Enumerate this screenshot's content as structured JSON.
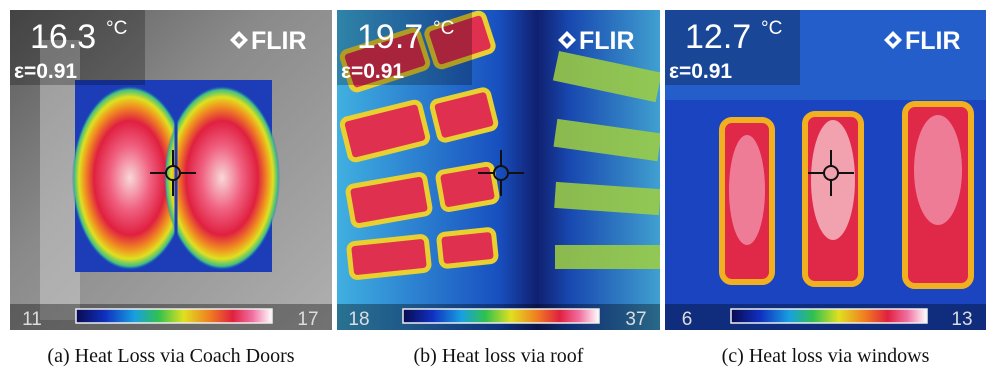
{
  "panels": [
    {
      "temperature": "16.3",
      "unit": "°C",
      "emissivity": "ε=0.91",
      "brand": "FLIR",
      "scale_min": "11",
      "scale_max": "17",
      "caption": "(a) Heat Loss via Coach Doors"
    },
    {
      "temperature": "19.7",
      "unit": "°C",
      "emissivity": "ε=0.91",
      "brand": "FLIR",
      "scale_min": "18",
      "scale_max": "37",
      "caption": "(b) Heat loss via roof"
    },
    {
      "temperature": "12.7",
      "unit": "°C",
      "emissivity": "ε=0.91",
      "brand": "FLIR",
      "scale_min": "6",
      "scale_max": "13",
      "caption": "(c) Heat loss via windows"
    }
  ]
}
